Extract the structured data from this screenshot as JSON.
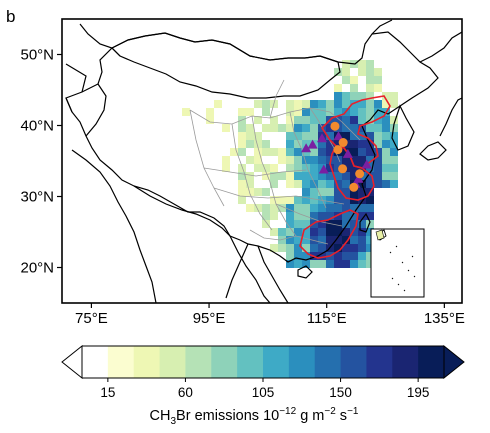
{
  "panel_label": "b",
  "map": {
    "lat_ticks": [
      {
        "value": 50,
        "label": "50°N"
      },
      {
        "value": 40,
        "label": "40°N"
      },
      {
        "value": 30,
        "label": "30°N"
      },
      {
        "value": 20,
        "label": "20°N"
      }
    ],
    "lon_ticks": [
      {
        "value": 75,
        "label": "75°E"
      },
      {
        "value": 95,
        "label": "95°E"
      },
      {
        "value": 115,
        "label": "115°E"
      },
      {
        "value": 135,
        "label": "135°E"
      }
    ],
    "extent": {
      "lon": [
        70,
        138
      ],
      "lat": [
        15,
        55
      ]
    },
    "highlight_color": "#e8202a",
    "marker_colors": {
      "triangle": "#7a1fa2",
      "circle": "#f28a2e"
    },
    "markers": [
      {
        "shape": "triangle",
        "lon": 114.2,
        "lat": 38.2
      },
      {
        "shape": "triangle",
        "lon": 117.0,
        "lat": 38.5
      },
      {
        "shape": "triangle",
        "lon": 112.6,
        "lat": 37.3
      },
      {
        "shape": "triangle",
        "lon": 111.5,
        "lat": 36.8
      },
      {
        "shape": "triangle",
        "lon": 118.6,
        "lat": 36.0
      },
      {
        "shape": "triangle",
        "lon": 120.4,
        "lat": 32.5
      },
      {
        "shape": "triangle",
        "lon": 119.9,
        "lat": 31.8
      },
      {
        "shape": "triangle",
        "lon": 114.5,
        "lat": 33.8
      },
      {
        "shape": "triangle",
        "lon": 121.8,
        "lat": 34.5
      },
      {
        "shape": "circle",
        "lon": 116.4,
        "lat": 39.9
      },
      {
        "shape": "circle",
        "lon": 117.8,
        "lat": 37.6
      },
      {
        "shape": "circle",
        "lon": 116.9,
        "lat": 36.6
      },
      {
        "shape": "circle",
        "lon": 117.7,
        "lat": 33.9
      },
      {
        "shape": "circle",
        "lon": 120.6,
        "lat": 33.2
      },
      {
        "shape": "circle",
        "lon": 119.6,
        "lat": 31.3
      }
    ]
  },
  "colorbar": {
    "levels": [
      0,
      15,
      30,
      45,
      60,
      75,
      90,
      105,
      120,
      135,
      150,
      165,
      180,
      195,
      210
    ],
    "colors": [
      "#ffffff",
      "#fbfdd0",
      "#eef7b4",
      "#d7efb1",
      "#b5e2b6",
      "#8ed2b9",
      "#63c1c0",
      "#3eaac6",
      "#2b8fbe",
      "#256fae",
      "#2453a0",
      "#23348e",
      "#1a2572",
      "#081d58"
    ],
    "ticks": [
      15,
      60,
      105,
      150,
      195
    ],
    "extend": "both",
    "label_pre": "CH",
    "label_sub": "3",
    "label_mid": "Br emissions 10",
    "label_exp1": "−12",
    "label_mid2": " g m",
    "label_exp2": "−2",
    "label_mid3": " s",
    "label_exp3": "−1"
  }
}
